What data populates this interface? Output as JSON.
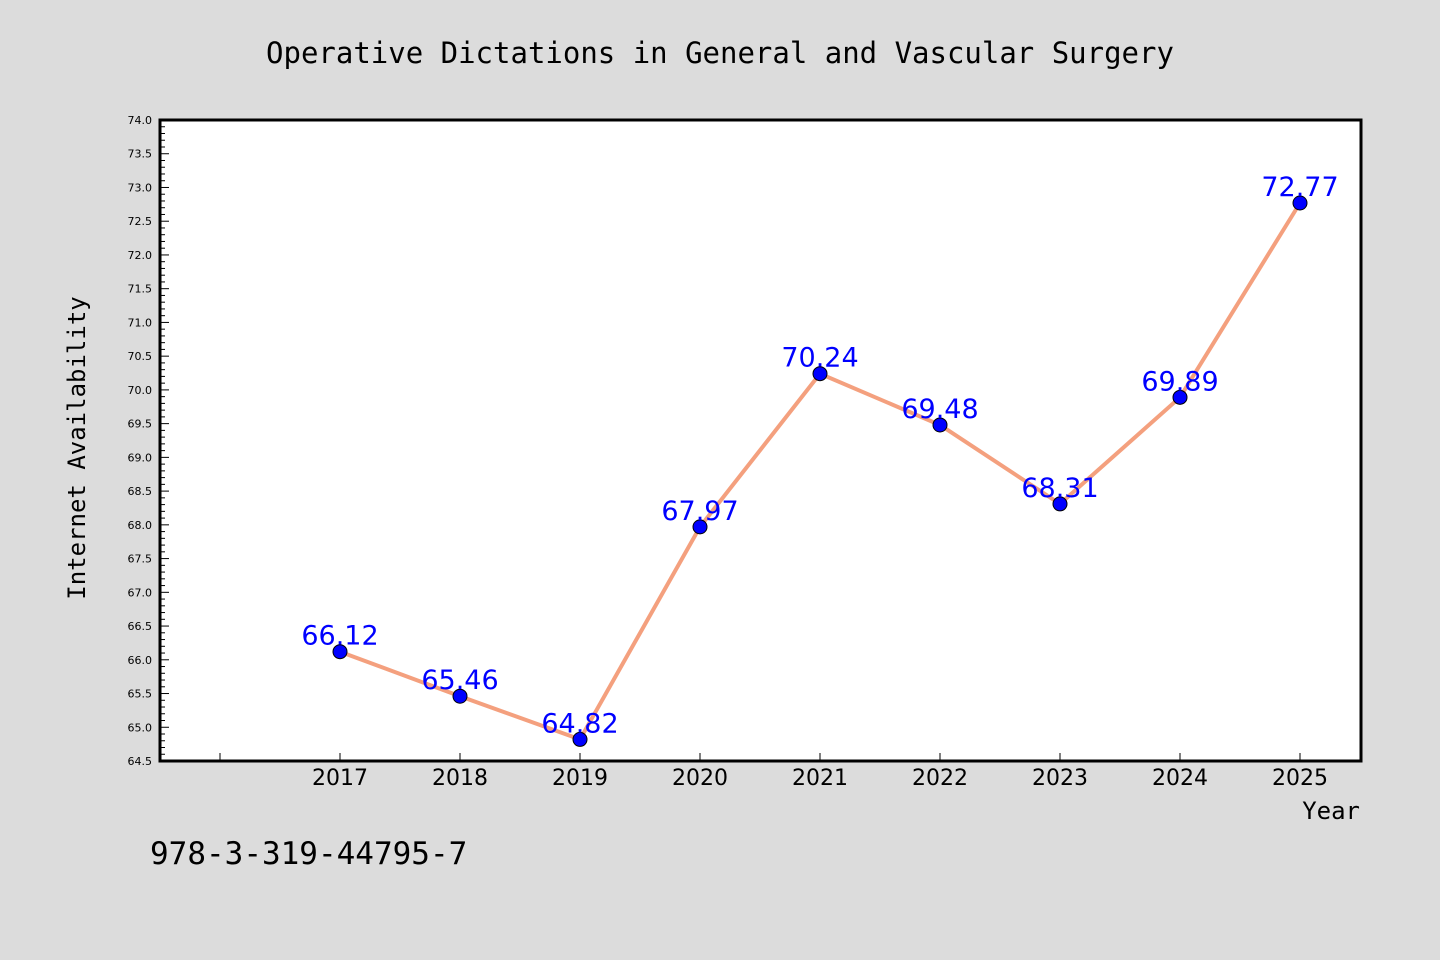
{
  "colors": {
    "background": "#dcdcdc",
    "plot_background": "#ffffff",
    "line": "#f4a07e",
    "marker": "#0000ff",
    "data_label": "#0000ff",
    "text": "#000000"
  },
  "footer_text": "978-3-319-44795-7",
  "chart_data": {
    "type": "line",
    "title": "Operative Dictations in General and Vascular Surgery",
    "xlabel": "Year",
    "ylabel": "Internet Availability",
    "x": [
      "2017",
      "2018",
      "2019",
      "2020",
      "2021",
      "2022",
      "2023",
      "2024",
      "2025"
    ],
    "series": [
      {
        "values": [
          66.12,
          65.46,
          64.82,
          67.97,
          70.24,
          69.48,
          68.31,
          69.89,
          72.77
        ]
      }
    ],
    "data_labels": [
      "66.12",
      "65.46",
      "64.82",
      "67.97",
      "70.24",
      "69.48",
      "68.31",
      "69.89",
      "72.77"
    ],
    "ylim": [
      64.5,
      74.0
    ],
    "yticks": [
      "64.5",
      "65.0",
      "65.5",
      "66.0",
      "66.5",
      "67.0",
      "67.5",
      "68.0",
      "68.5",
      "69.0",
      "69.5",
      "70.0",
      "70.5",
      "71.0",
      "71.5",
      "72.0",
      "72.5",
      "73.0",
      "73.5",
      "74.0"
    ],
    "grid": false,
    "legend": "none"
  }
}
